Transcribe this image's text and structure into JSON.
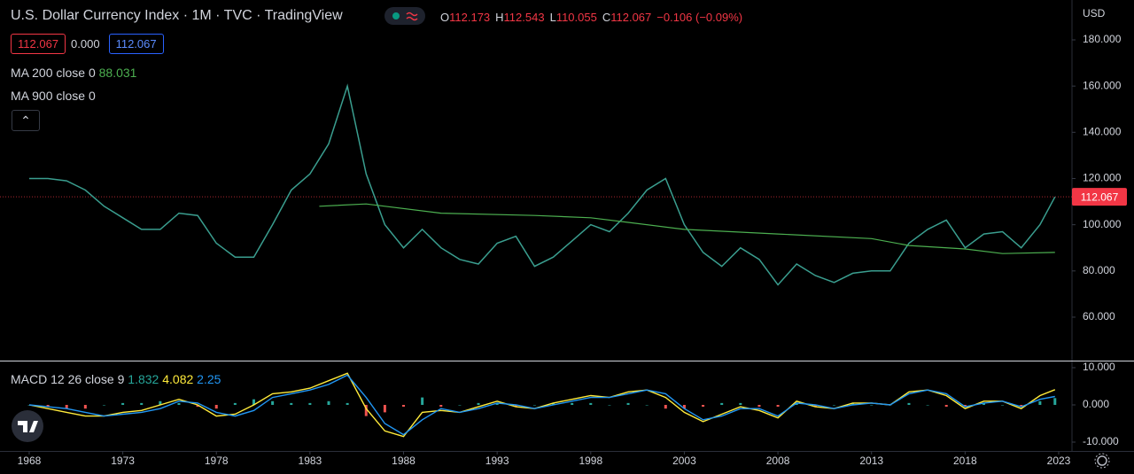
{
  "chart_data": [
    {
      "type": "line",
      "title": "U.S. Dollar Currency Index · 1M · TVC · TradingView",
      "ohlc": [
        {
          "label": "O",
          "value": 112.173
        },
        {
          "label": "H",
          "value": 112.543
        },
        {
          "label": "L",
          "value": 110.055
        },
        {
          "label": "C",
          "value": 112.067
        }
      ],
      "change": "−0.106 (−0.09%)",
      "inputs": [
        "112.067",
        "0.000",
        "112.067"
      ],
      "currency": "USD",
      "color": "#3a9e8f",
      "x": [
        1968,
        1969,
        1970,
        1971,
        1972,
        1973,
        1974,
        1975,
        1976,
        1977,
        1978,
        1979,
        1980,
        1981,
        1982,
        1983,
        1984,
        1985,
        1986,
        1987,
        1988,
        1989,
        1990,
        1991,
        1992,
        1993,
        1994,
        1995,
        1996,
        1997,
        1998,
        1999,
        2000,
        2001,
        2002,
        2003,
        2004,
        2005,
        2006,
        2007,
        2008,
        2009,
        2010,
        2011,
        2012,
        2013,
        2014,
        2015,
        2016,
        2017,
        2018,
        2019,
        2020,
        2021,
        2022,
        2022.8
      ],
      "values": [
        120,
        120,
        119,
        115,
        108,
        103,
        98,
        98,
        105,
        104,
        92,
        86,
        86,
        100,
        115,
        122,
        135,
        160,
        122,
        100,
        90,
        98,
        90,
        85,
        83,
        92,
        95,
        82,
        86,
        93,
        100,
        97,
        105,
        115,
        120,
        100,
        88,
        82,
        90,
        85,
        74,
        83,
        78,
        75,
        79,
        80,
        80,
        92,
        98,
        102,
        90,
        96,
        97,
        90,
        100,
        112.067
      ],
      "indicators": [
        {
          "name": "MA 200 close 0",
          "color": "#4caf50",
          "x": [
            1983.5,
            1986,
            1990,
            1995,
            1998,
            2000,
            2003,
            2008,
            2013,
            2015,
            2018,
            2020,
            2022.8
          ],
          "values": [
            108,
            109,
            105,
            104,
            103,
            101,
            98,
            96,
            94,
            91,
            89.5,
            87.5,
            88.031
          ]
        },
        {
          "name": "MA 900 close 0"
        }
      ],
      "xlim": [
        1966.44,
        2023.71
      ],
      "xticks": [
        1968,
        1973,
        1978,
        1983,
        1988,
        1993,
        1998,
        2003,
        2008,
        2013,
        2018,
        2023
      ],
      "ylim": [
        41.2,
        197.25
      ],
      "yticks": [
        {
          "value": 60,
          "label": "60.000"
        },
        {
          "value": 80,
          "label": "80.000"
        },
        {
          "value": 100,
          "label": "100.000"
        },
        {
          "value": 120,
          "label": "120.000"
        },
        {
          "value": 140,
          "label": "140.000"
        },
        {
          "value": 160,
          "label": "160.000"
        },
        {
          "value": 180,
          "label": "180.000"
        }
      ],
      "grid": false
    },
    {
      "type": "macd",
      "title": "MACD 12 26 close 9",
      "x": [
        1968,
        1969,
        1970,
        1971,
        1972,
        1973,
        1974,
        1975,
        1976,
        1977,
        1978,
        1979,
        1980,
        1981,
        1982,
        1983,
        1984,
        1985,
        1986,
        1987,
        1988,
        1989,
        1990,
        1991,
        1992,
        1993,
        1994,
        1995,
        1996,
        1997,
        1998,
        1999,
        2000,
        2001,
        2002,
        2003,
        2004,
        2005,
        2006,
        2007,
        2008,
        2009,
        2010,
        2011,
        2012,
        2013,
        2014,
        2015,
        2016,
        2017,
        2018,
        2019,
        2020,
        2021,
        2022,
        2022.8
      ],
      "series": [
        {
          "kind": "histogram",
          "color": "#26a69a",
          "color_down": "#ef5350",
          "values": [
            0,
            -0.5,
            -1,
            -1,
            0,
            0.5,
            0.5,
            1,
            0.5,
            -0.5,
            -1,
            0.5,
            1.5,
            1,
            0.5,
            0.5,
            1,
            0.5,
            -3,
            -2,
            -0.5,
            2,
            -0.5,
            0,
            0.5,
            0.5,
            -0.5,
            0,
            0.5,
            0.5,
            0.5,
            0,
            0.5,
            0,
            -1,
            -1,
            -0.5,
            0.5,
            0.5,
            -0.5,
            -0.5,
            0.5,
            -0.5,
            0,
            0.5,
            0,
            0,
            0.5,
            0,
            -0.5,
            -0.5,
            0.5,
            0,
            -0.5,
            1,
            1.832
          ]
        },
        {
          "kind": "line",
          "color": "#ffeb3b",
          "values": [
            0,
            -1,
            -2,
            -3,
            -3,
            -2,
            -1.5,
            0,
            1.5,
            0,
            -3,
            -2.5,
            0,
            3,
            3.5,
            4.5,
            6.5,
            8.5,
            -1,
            -7,
            -8.5,
            -2,
            -1.5,
            -2,
            -0.5,
            1,
            -0.5,
            -1,
            0.5,
            1.5,
            2.5,
            2,
            3.5,
            4,
            2,
            -2,
            -4.5,
            -2.5,
            -0.5,
            -1.5,
            -3.5,
            1,
            -0.5,
            -1,
            0.5,
            0.5,
            0,
            3.5,
            4,
            2.5,
            -1,
            1,
            1,
            -1,
            2.5,
            4.082
          ]
        },
        {
          "kind": "line",
          "color": "#2196f3",
          "values": [
            0,
            -0.5,
            -1,
            -2,
            -3,
            -2.5,
            -2,
            -1,
            1,
            0.5,
            -2,
            -3,
            -1.5,
            2,
            3,
            4,
            5.5,
            8,
            2,
            -5,
            -8,
            -4,
            -1,
            -2,
            -1,
            0.5,
            0,
            -1,
            0,
            1,
            2,
            2,
            3,
            4,
            3,
            -1,
            -4,
            -3,
            -1,
            -1,
            -3,
            0.5,
            0,
            -1,
            0,
            0.5,
            0,
            3,
            4,
            3,
            -0.5,
            0.5,
            1,
            -0.5,
            1.5,
            2.25
          ]
        }
      ],
      "xlim": [
        1966.44,
        2023.71
      ],
      "ylim": [
        -12.14,
        11.9
      ],
      "yticks": [
        {
          "value": -10,
          "label": "-10.000"
        },
        {
          "value": 0,
          "label": "0.000"
        },
        {
          "value": 10,
          "label": "10.000"
        }
      ]
    }
  ]
}
